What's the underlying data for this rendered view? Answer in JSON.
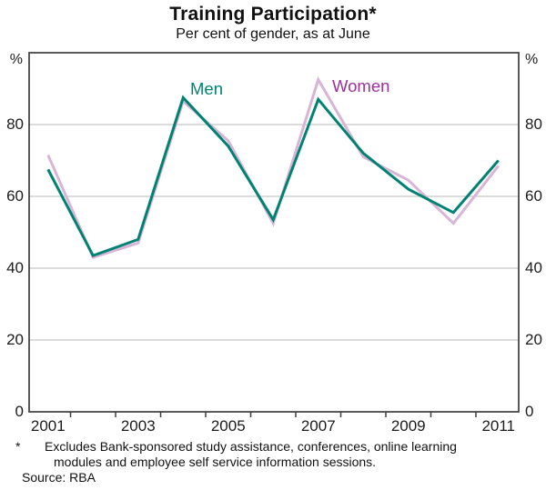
{
  "header": {
    "title": "Training Participation*",
    "subtitle": "Per cent of gender, as at June"
  },
  "chart_data": {
    "type": "line",
    "title": "Training Participation*",
    "subtitle": "Per cent of gender, as at June",
    "x": [
      2001,
      2002,
      2003,
      2004,
      2005,
      2006,
      2007,
      2008,
      2009,
      2010,
      2011
    ],
    "series": [
      {
        "name": "Men",
        "color": "#008273",
        "label_color": "#008273",
        "values": [
          67.5,
          43.5,
          48,
          87.5,
          74,
          53.5,
          87,
          72,
          62,
          55.5,
          70
        ]
      },
      {
        "name": "Women",
        "color": "#d8b4d6",
        "label_color": "#993299",
        "values": [
          71.5,
          43,
          47,
          86.5,
          75.5,
          52.5,
          92.5,
          71,
          64.5,
          52.5,
          68.5
        ]
      }
    ],
    "ylim": [
      0,
      100
    ],
    "yticks": [
      0,
      20,
      40,
      60,
      80
    ],
    "unit_label": "%",
    "xlim": [
      2000.58,
      2011.45
    ],
    "xtick_label_years": [
      2001,
      2003,
      2005,
      2007,
      2009,
      2011
    ],
    "x_minor_ticks": [
      2001.5,
      2002.5,
      2003.5,
      2004.5,
      2005.5,
      2006.5,
      2007.5,
      2008.5,
      2009.5,
      2010.5
    ],
    "grid": "horizontal",
    "legend_position": "inline-annotations",
    "axis_color": "#3d3d3d",
    "gridline_color": "#c8c8c8"
  },
  "axis": {
    "unit_left": "%",
    "unit_right": "%"
  },
  "annotations": {
    "men_label": "Men",
    "women_label": "Women"
  },
  "footnote": {
    "marker": "*",
    "line1": "Excludes Bank-sponsored study assistance, conferences, online learning",
    "line2": "modules and employee self service information sessions.",
    "source": "Source: RBA"
  }
}
